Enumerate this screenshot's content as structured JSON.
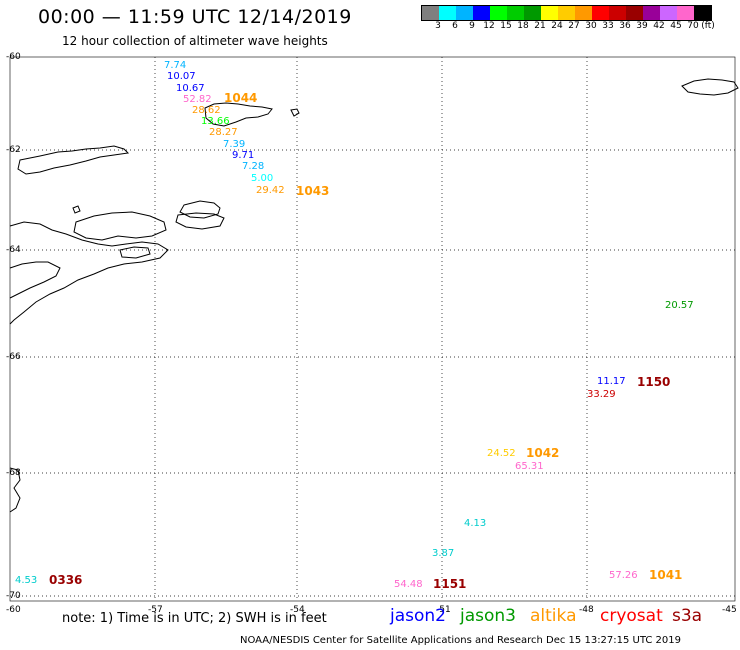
{
  "header": {
    "title": "00:00 — 11:59 UTC 12/14/2019",
    "subtitle": "12 hour collection of altimeter wave heights"
  },
  "colorbar": {
    "colors": [
      "#7f7f7f",
      "#00ffff",
      "#00b4ff",
      "#0000ff",
      "#00ff00",
      "#00cc00",
      "#009900",
      "#ffff00",
      "#ffcc00",
      "#ff9900",
      "#ff0000",
      "#cc0000",
      "#990000",
      "#990099",
      "#cc66ff",
      "#ff66cc",
      "#000000"
    ],
    "ticks": [
      "3",
      "6",
      "9",
      "12",
      "15",
      "18",
      "21",
      "24",
      "27",
      "30",
      "33",
      "36",
      "39",
      "42",
      "45",
      "70",
      "(ft)"
    ]
  },
  "grid": {
    "lat_labels": [
      "-60",
      "-62",
      "-64",
      "-66",
      "-68",
      "-70"
    ],
    "lon_labels": [
      "-57",
      "-54",
      "-51",
      "-48",
      "-45"
    ],
    "left_edge_label": "-60"
  },
  "observations": [
    {
      "text": "7.74",
      "color": "#00b4ff"
    },
    {
      "text": "10.07",
      "color": "#0000ff"
    },
    {
      "text": "10.67",
      "color": "#0000ff"
    },
    {
      "text": "52.82",
      "color": "#ff66cc"
    },
    {
      "text": "28.62",
      "color": "#ff9900"
    },
    {
      "text": "13.66",
      "color": "#00ff00"
    },
    {
      "text": "28.27",
      "color": "#ff9900"
    },
    {
      "text": "7.39",
      "color": "#00b4ff"
    },
    {
      "text": "9.71",
      "color": "#0000ff"
    },
    {
      "text": "7.28",
      "color": "#00b4ff"
    },
    {
      "text": "5.00",
      "color": "#00ffff"
    },
    {
      "text": "29.42",
      "color": "#ff9900"
    },
    {
      "text": "20.57",
      "color": "#009900"
    },
    {
      "text": "11.17",
      "color": "#0000ff"
    },
    {
      "text": "33.29",
      "color": "#cc0000"
    },
    {
      "text": "24.52",
      "color": "#ffcc00"
    },
    {
      "text": "65.31",
      "color": "#ff66cc"
    },
    {
      "text": "4.13",
      "color": "#00cccc"
    },
    {
      "text": "3.87",
      "color": "#00cccc"
    },
    {
      "text": "54.48",
      "color": "#ff66cc"
    },
    {
      "text": "57.26",
      "color": "#ff66cc"
    },
    {
      "text": "4.53",
      "color": "#00cccc"
    }
  ],
  "passes": [
    {
      "text": "1044",
      "color": "#ff9900"
    },
    {
      "text": "1043",
      "color": "#ff9900"
    },
    {
      "text": "1150",
      "color": "#990000"
    },
    {
      "text": "1042",
      "color": "#ff9900"
    },
    {
      "text": "1151",
      "color": "#990000"
    },
    {
      "text": "1041",
      "color": "#ff9900"
    },
    {
      "text": "0336",
      "color": "#990000"
    }
  ],
  "legend": {
    "note": "note: 1) Time is in UTC; 2) SWH is in feet",
    "satellites": [
      {
        "text": "jason2",
        "color": "#0000ff"
      },
      {
        "text": "jason3",
        "color": "#009900"
      },
      {
        "text": "altika",
        "color": "#ff9900"
      },
      {
        "text": "cryosat",
        "color": "#ff0000"
      },
      {
        "text": "s3a",
        "color": "#990000"
      }
    ]
  },
  "footer": "NOAA/NESDIS Center for Satellite Applications and Research    Dec 15 13:27:15 UTC 2019"
}
